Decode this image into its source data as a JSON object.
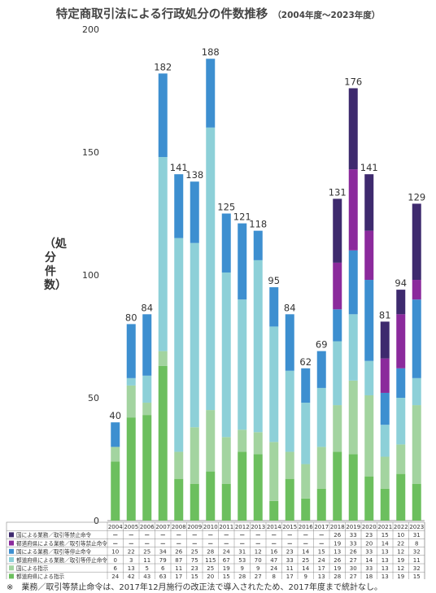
{
  "title": "特定商取引法による行政処分の件数推移",
  "subtitle": "（2004年度～2023年度）",
  "ylabel": "（処分件数）",
  "note": "※　業務／取引等禁止命令は、2017年12月施行の改正法で導入されたため、2017年度まで統計なし。",
  "chart_data": {
    "type": "bar",
    "stacked": true,
    "ylim": [
      0,
      200
    ],
    "yticks": [
      0,
      50,
      100,
      150,
      200
    ],
    "grid": false,
    "categories": [
      "2004",
      "2005",
      "2006",
      "2007",
      "2008",
      "2009",
      "2010",
      "2011",
      "2012",
      "2013",
      "2014",
      "2015",
      "2016",
      "2017",
      "2018",
      "2019",
      "2020",
      "2021",
      "2022",
      "2023"
    ],
    "totals": [
      40,
      80,
      84,
      182,
      141,
      138,
      188,
      125,
      121,
      118,
      95,
      84,
      62,
      69,
      131,
      176,
      141,
      81,
      94,
      129
    ],
    "series": [
      {
        "name": "都道府県による指示",
        "color": "#6cbf5e",
        "values": [
          24,
          42,
          43,
          63,
          17,
          15,
          20,
          15,
          28,
          27,
          8,
          17,
          9,
          13,
          28,
          27,
          18,
          13,
          19,
          15
        ]
      },
      {
        "name": "国による指示",
        "color": "#a3d4a0",
        "values": [
          6,
          13,
          5,
          6,
          11,
          23,
          25,
          19,
          9,
          9,
          24,
          11,
          14,
          17,
          19,
          30,
          33,
          13,
          12,
          32
        ]
      },
      {
        "name": "都道府県による業務／取引等停止命令",
        "color": "#8dd0d8",
        "values": [
          0,
          3,
          11,
          79,
          87,
          75,
          115,
          67,
          53,
          70,
          47,
          33,
          25,
          24,
          26,
          27,
          14,
          13,
          19,
          11
        ]
      },
      {
        "name": "国による業務／取引等停止命令",
        "color": "#3d8fd0",
        "values": [
          10,
          22,
          25,
          34,
          26,
          25,
          28,
          24,
          31,
          12,
          16,
          23,
          14,
          15,
          13,
          26,
          33,
          13,
          12,
          32
        ]
      },
      {
        "name": "都道府県による業務／取引等禁止命令",
        "color": "#8b2a9c",
        "values": [
          null,
          null,
          null,
          null,
          null,
          null,
          null,
          null,
          null,
          null,
          null,
          null,
          null,
          null,
          19,
          33,
          20,
          14,
          22,
          8
        ]
      },
      {
        "name": "国による業務／取引等禁止命令",
        "color": "#3e2a6e",
        "values": [
          null,
          null,
          null,
          null,
          null,
          null,
          null,
          null,
          null,
          null,
          null,
          null,
          null,
          null,
          26,
          33,
          23,
          15,
          10,
          31
        ]
      }
    ],
    "table_order": [
      5,
      4,
      3,
      2,
      1,
      0
    ],
    "null_mark": "－"
  }
}
